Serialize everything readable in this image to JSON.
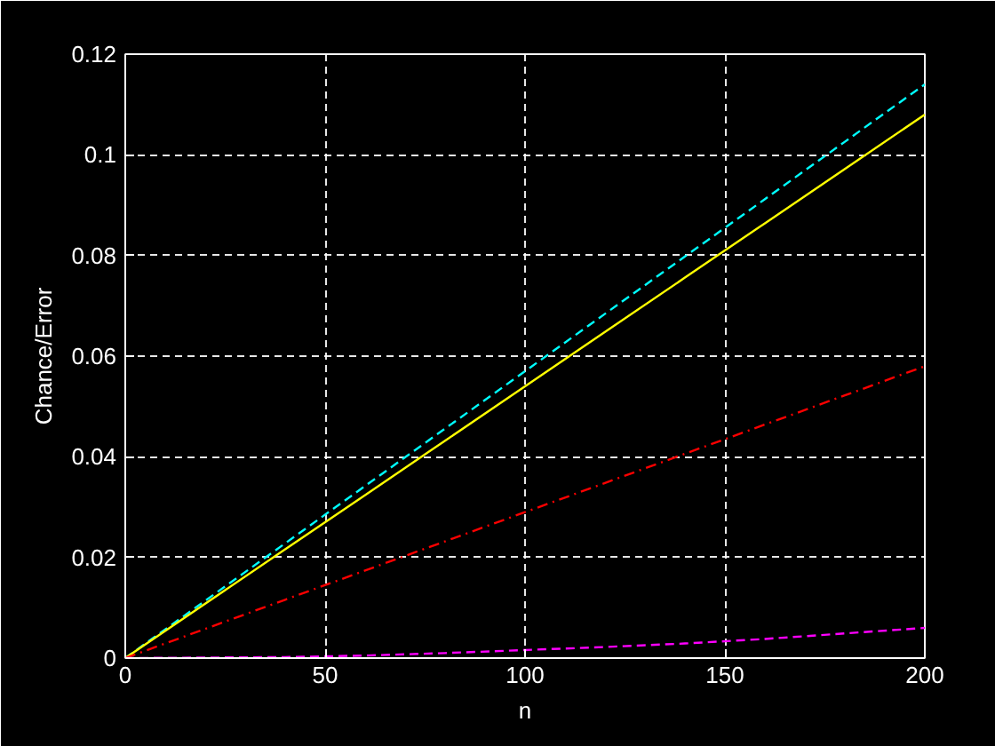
{
  "chart_data": {
    "type": "line",
    "xlabel": "n",
    "ylabel": "Chance/Error",
    "xlim": [
      0,
      200
    ],
    "ylim": [
      0,
      0.12
    ],
    "xticks": [
      0,
      50,
      100,
      150,
      200
    ],
    "yticks": [
      0,
      0.02,
      0.04,
      0.06,
      0.08,
      0.1,
      0.12
    ],
    "grid": true,
    "marker": "none",
    "x": [
      0,
      20,
      40,
      60,
      80,
      100,
      120,
      140,
      160,
      180,
      200
    ],
    "series": [
      {
        "color": "#00ffff",
        "line_style": "dashed",
        "values": [
          0,
          0.0114,
          0.0228,
          0.0342,
          0.0456,
          0.057,
          0.0684,
          0.0798,
          0.0912,
          0.1026,
          0.114
        ]
      },
      {
        "color": "#ffff00",
        "line_style": "solid",
        "values": [
          0,
          0.0108,
          0.0216,
          0.0324,
          0.0432,
          0.054,
          0.0648,
          0.0756,
          0.0864,
          0.0972,
          0.108
        ]
      },
      {
        "color": "#ff0000",
        "line_style": "dashdot",
        "values": [
          0,
          0.0058,
          0.0116,
          0.0174,
          0.0232,
          0.029,
          0.0348,
          0.0406,
          0.0464,
          0.0522,
          0.058
        ]
      },
      {
        "color": "#ff00ff",
        "line_style": "dashed",
        "values": [
          0,
          0.0001,
          0.0002,
          0.0005,
          0.001,
          0.0016,
          0.0022,
          0.0029,
          0.0038,
          0.0049,
          0.006
        ]
      }
    ]
  }
}
